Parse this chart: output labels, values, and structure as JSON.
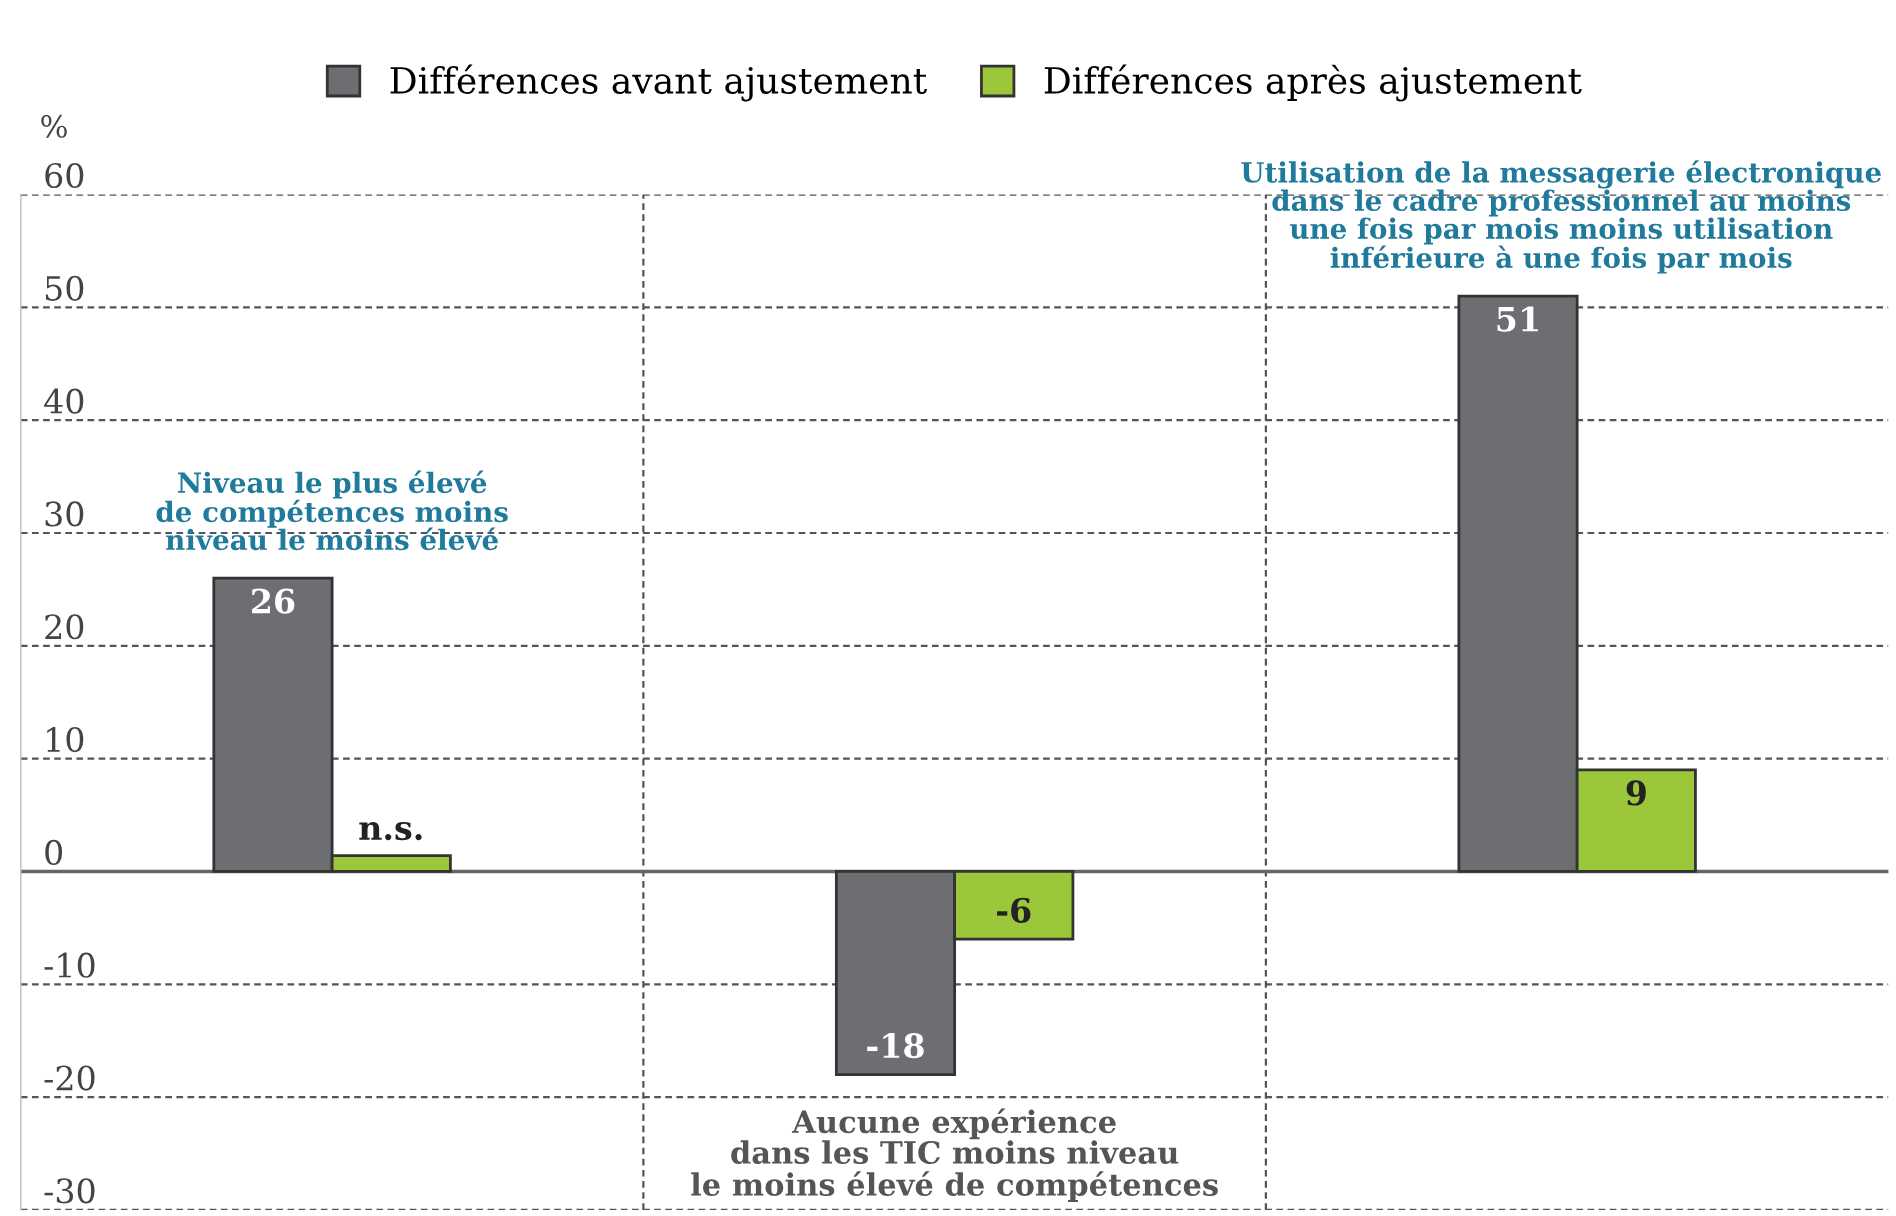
{
  "chart_data": {
    "type": "bar",
    "ylabel": "%",
    "categories": [
      "Niveau le plus élevé\nde compétences moins\nniveau le moins élevé",
      "Aucune expérience\ndans les TIC moins niveau\nle moins élevé de compétences",
      "Utilisation de la messagerie électronique\ndans le cadre professionnel au moins\nune fois par mois moins utilisation\ninférieure à une fois par mois"
    ],
    "series": [
      {
        "name": "Différences avant ajustement",
        "color": "#6d6e71",
        "values": [
          26,
          -18,
          51
        ],
        "value_labels": [
          "26",
          "-18",
          "51"
        ]
      },
      {
        "name": "Différences après ajustement",
        "color": "#9dc73a",
        "values": [
          1.4,
          -6,
          9
        ],
        "value_labels": [
          "n.s.",
          "-6",
          "9"
        ]
      }
    ],
    "ylim": [
      -30,
      60
    ],
    "yticks": [
      -30,
      -20,
      -10,
      0,
      10,
      20,
      30,
      40,
      50,
      60
    ],
    "grid": true,
    "legend": "top"
  }
}
